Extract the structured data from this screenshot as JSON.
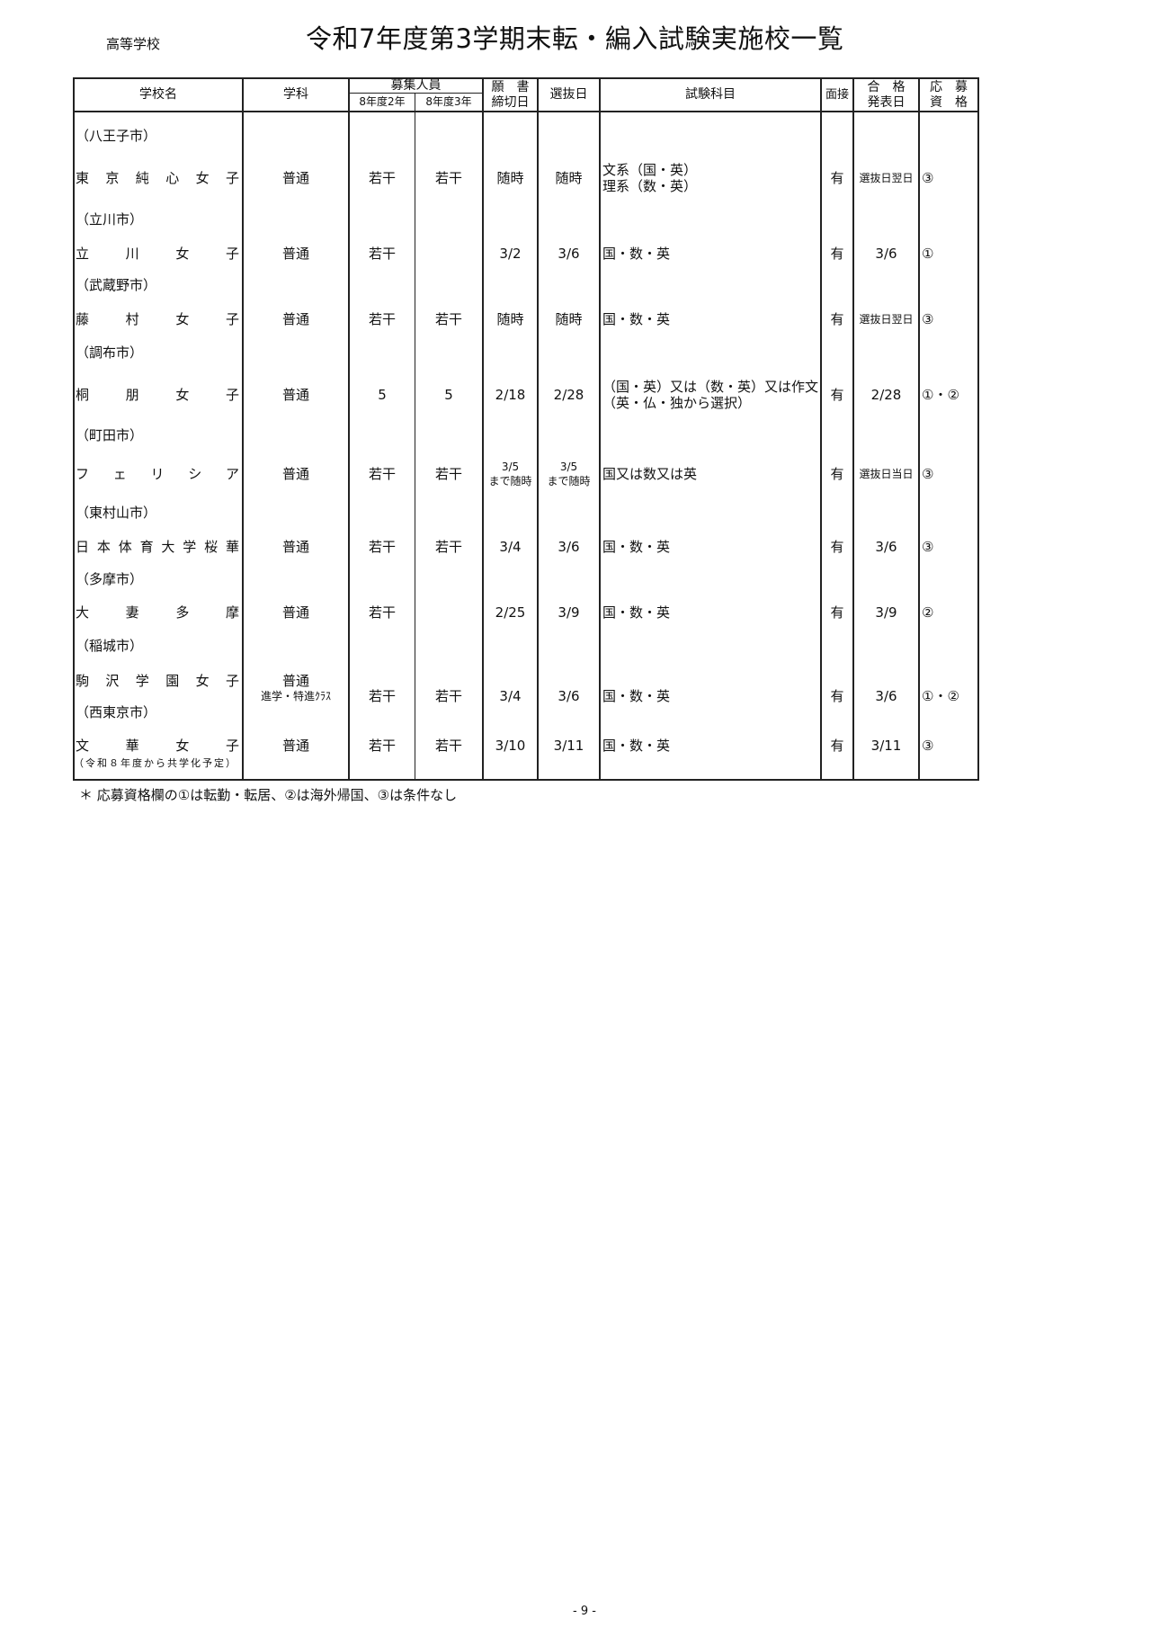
{
  "header": {
    "label": "高等学校",
    "title": "令和7年度第3学期末転・編入試験実施校一覧"
  },
  "columns": {
    "school": "学校名",
    "course": "学科",
    "recruit": "募集人員",
    "recruit_y2": "8年度2年",
    "recruit_y3": "8年度3年",
    "deadline_1": "願　書",
    "deadline_2": "締切日",
    "selection": "選抜日",
    "subjects": "試験科目",
    "interview": "面接",
    "result_1": "合　格",
    "result_2": "発表日",
    "eligibility_1": "応　募",
    "eligibility_2": "資　格"
  },
  "cities": [
    "（八王子市）",
    "（立川市）",
    "（武蔵野市）",
    "（調布市）",
    "（町田市）",
    "（東村山市）",
    "（多摩市）",
    "（稲城市）",
    "（西東京市）"
  ],
  "schools": [
    {
      "name": "東京純心女子",
      "course": "普通",
      "course_note": "",
      "y2": "若干",
      "y3": "若干",
      "deadline": "随時",
      "deadline_note": "",
      "selection": "随時",
      "selection_note": "",
      "subjects": [
        "文系（国・英）",
        "理系（数・英）"
      ],
      "interview": "有",
      "result": "選抜日翌日",
      "eligibility": "③",
      "name_note": ""
    },
    {
      "name": "立川女子",
      "course": "普通",
      "course_note": "",
      "y2": "若干",
      "y3": "",
      "deadline": "3/2",
      "deadline_note": "",
      "selection": "3/6",
      "selection_note": "",
      "subjects": [
        "国・数・英"
      ],
      "interview": "有",
      "result": "3/6",
      "eligibility": "①",
      "name_note": ""
    },
    {
      "name": "藤村女子",
      "course": "普通",
      "course_note": "",
      "y2": "若干",
      "y3": "若干",
      "deadline": "随時",
      "deadline_note": "",
      "selection": "随時",
      "selection_note": "",
      "subjects": [
        "国・数・英"
      ],
      "interview": "有",
      "result": "選抜日翌日",
      "eligibility": "③",
      "name_note": ""
    },
    {
      "name": "桐朋女子",
      "course": "普通",
      "course_note": "",
      "y2": "5",
      "y3": "5",
      "deadline": "2/18",
      "deadline_note": "",
      "selection": "2/28",
      "selection_note": "",
      "subjects": [
        "（国・英）又は（数・英）又は作文",
        "（英・仏・独から選択）"
      ],
      "interview": "有",
      "result": "2/28",
      "eligibility": "①・②",
      "name_note": ""
    },
    {
      "name": "フェリシア",
      "course": "普通",
      "course_note": "",
      "y2": "若干",
      "y3": "若干",
      "deadline": "3/5",
      "deadline_note": "まで随時",
      "selection": "3/5",
      "selection_note": "まで随時",
      "subjects": [
        "国又は数又は英"
      ],
      "interview": "有",
      "result": "選抜日当日",
      "eligibility": "③",
      "name_note": ""
    },
    {
      "name": "日本体育大学桜華",
      "course": "普通",
      "course_note": "",
      "y2": "若干",
      "y3": "若干",
      "deadline": "3/4",
      "deadline_note": "",
      "selection": "3/6",
      "selection_note": "",
      "subjects": [
        "国・数・英"
      ],
      "interview": "有",
      "result": "3/6",
      "eligibility": "③",
      "name_note": ""
    },
    {
      "name": "大妻多摩",
      "course": "普通",
      "course_note": "",
      "y2": "若干",
      "y3": "",
      "deadline": "2/25",
      "deadline_note": "",
      "selection": "3/9",
      "selection_note": "",
      "subjects": [
        "国・数・英"
      ],
      "interview": "有",
      "result": "3/9",
      "eligibility": "②",
      "name_note": ""
    },
    {
      "name": "駒沢学園女子",
      "course": "普通",
      "course_note": "進学・特進ｸﾗｽ",
      "y2": "若干",
      "y3": "若干",
      "deadline": "3/4",
      "deadline_note": "",
      "selection": "3/6",
      "selection_note": "",
      "subjects": [
        "国・数・英"
      ],
      "interview": "有",
      "result": "3/6",
      "eligibility": "①・②",
      "name_note": ""
    },
    {
      "name": "文華女子",
      "course": "普通",
      "course_note": "",
      "y2": "若干",
      "y3": "若干",
      "deadline": "3/10",
      "deadline_note": "",
      "selection": "3/11",
      "selection_note": "",
      "subjects": [
        "国・数・英"
      ],
      "interview": "有",
      "result": "3/11",
      "eligibility": "③",
      "name_note": "（令和８年度から共学化予定）"
    }
  ],
  "footnote": "＊ 応募資格欄の①は転勤・転居、②は海外帰国、③は条件なし",
  "page_number": "- 9 -"
}
